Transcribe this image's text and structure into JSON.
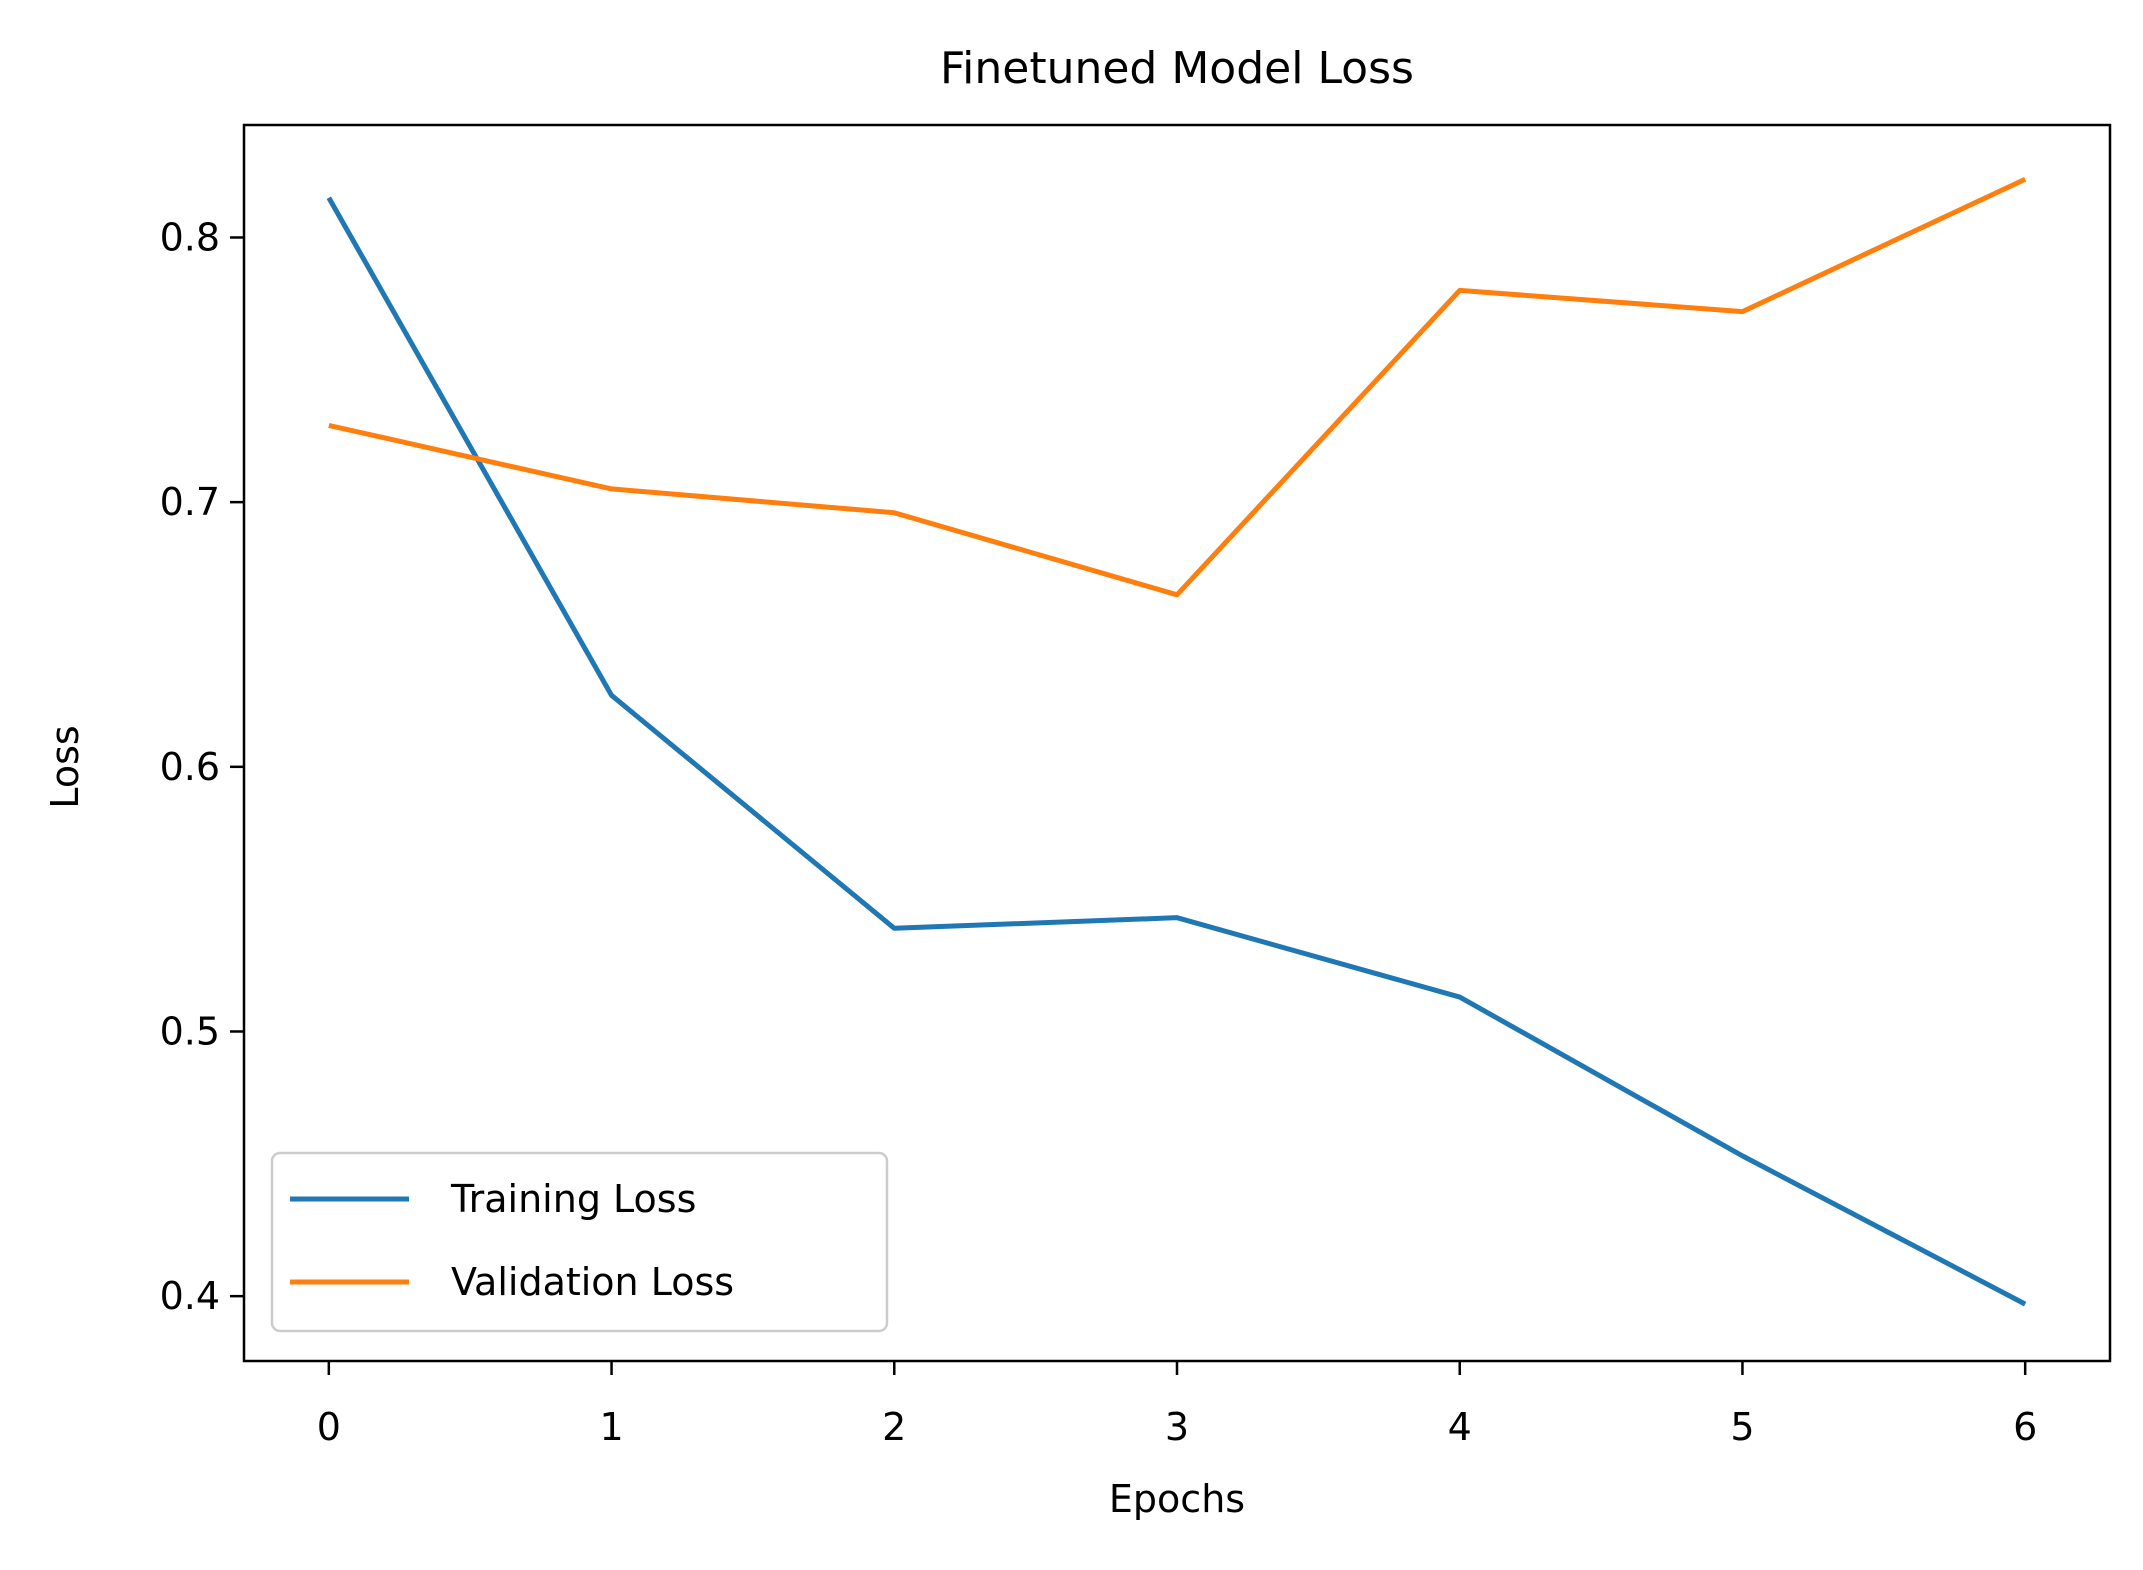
{
  "chart_data": {
    "type": "line",
    "title": "Finetuned Model Loss",
    "xlabel": "Epochs",
    "ylabel": "Loss",
    "x": [
      0,
      1,
      2,
      3,
      4,
      5,
      6
    ],
    "xlim": [
      -0.3,
      6.3
    ],
    "ylim": [
      0.3755,
      0.8425
    ],
    "xticks": [
      0,
      1,
      2,
      3,
      4,
      5,
      6
    ],
    "yticks": [
      0.4,
      0.5,
      0.6,
      0.7,
      0.8
    ],
    "xtick_labels": [
      "0",
      "1",
      "2",
      "3",
      "4",
      "5",
      "6"
    ],
    "ytick_labels": [
      "0.4",
      "0.5",
      "0.6",
      "0.7",
      "0.8"
    ],
    "grid": false,
    "legend_position": "lower-left",
    "series": [
      {
        "name": "Training Loss",
        "color": "#1f77b4",
        "values": [
          0.815,
          0.627,
          0.539,
          0.543,
          0.513,
          0.453,
          0.397
        ]
      },
      {
        "name": "Validation Loss",
        "color": "#ff7f0e",
        "values": [
          0.729,
          0.705,
          0.696,
          0.665,
          0.78,
          0.772,
          0.822
        ]
      }
    ]
  }
}
